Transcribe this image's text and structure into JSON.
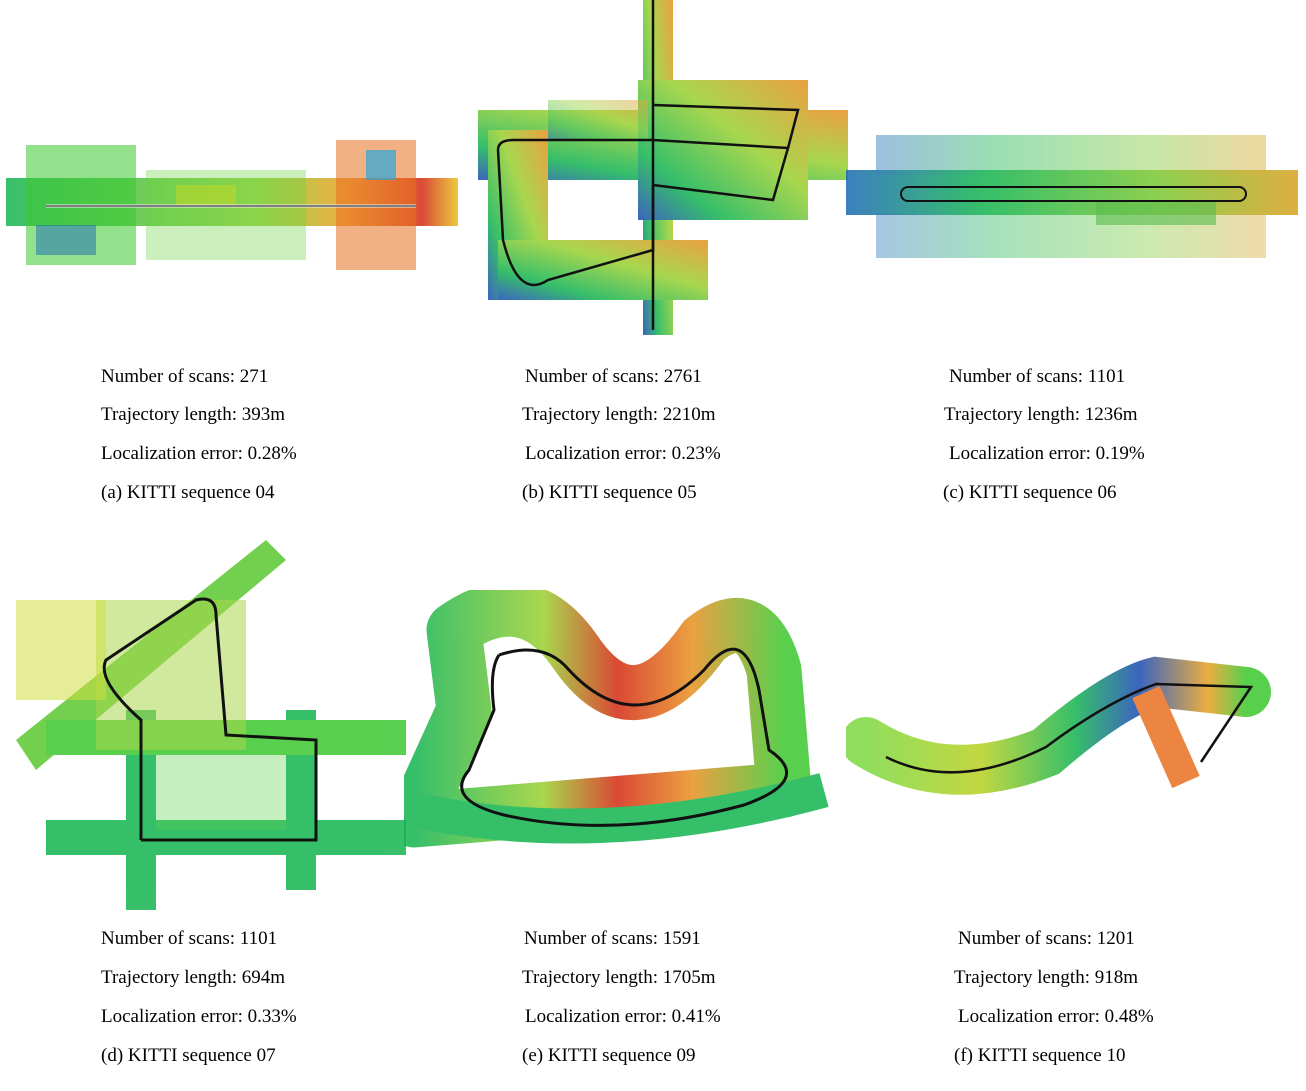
{
  "colors": {
    "high": "#d42a12",
    "mid_high": "#e8a020",
    "mid": "#c8d820",
    "mid_low": "#3cc830",
    "low_green": "#14b450",
    "low": "#1a4ab4",
    "trajectory": "#111111"
  },
  "panels": [
    {
      "scans": "Number of scans: 271",
      "length": "Trajectory length: 393m",
      "error": "Localization error: 0.28%",
      "caption": "(a) KITTI sequence 04"
    },
    {
      "scans": "Number of scans: 2761",
      "length": "Trajectory length: 2210m",
      "error": "Localization error: 0.23%",
      "caption": "(b) KITTI sequence 05"
    },
    {
      "scans": "Number of scans: 1101",
      "length": "Trajectory length: 1236m",
      "error": "Localization error: 0.19%",
      "caption": "(c) KITTI sequence 06"
    },
    {
      "scans": "Number of scans: 1101",
      "length": "Trajectory length: 694m",
      "error": "Localization error: 0.33%",
      "caption": "(d) KITTI sequence 07"
    },
    {
      "scans": "Number of scans: 1591",
      "length": "Trajectory length: 1705m",
      "error": "Localization error: 0.41%",
      "caption": "(e) KITTI sequence 09"
    },
    {
      "scans": "Number of scans: 1201",
      "length": "Trajectory length: 918m",
      "error": "Localization error: 0.48%",
      "caption": "(f) KITTI sequence 10"
    }
  ]
}
